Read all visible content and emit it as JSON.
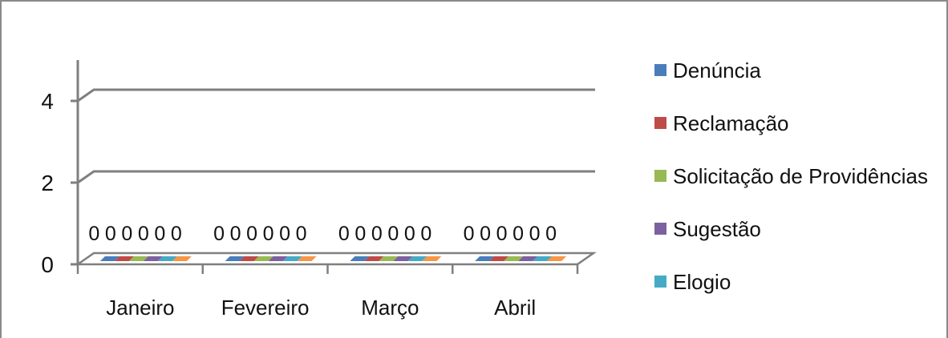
{
  "chart_data": {
    "type": "bar",
    "title": "",
    "xlabel": "",
    "ylabel": "",
    "ylim": [
      0,
      4
    ],
    "yticks": [
      "0",
      "2",
      "4"
    ],
    "grid": true,
    "legend_position": "right",
    "categories": [
      "Janeiro",
      "Fevereiro",
      "Março",
      "Abril"
    ],
    "series": [
      {
        "name": "Denúncia",
        "color": "#4a7ebb",
        "values": [
          0,
          0,
          0,
          0
        ]
      },
      {
        "name": "Reclamação",
        "color": "#be4b48",
        "values": [
          0,
          0,
          0,
          0
        ]
      },
      {
        "name": "Solicitação de Providências",
        "color": "#98b954",
        "values": [
          0,
          0,
          0,
          0
        ]
      },
      {
        "name": "Sugestão",
        "color": "#7d60a0",
        "values": [
          0,
          0,
          0,
          0
        ]
      },
      {
        "name": "Elogio",
        "color": "#46aac5",
        "values": [
          0,
          0,
          0,
          0
        ]
      },
      {
        "name": "",
        "color": "#f79646",
        "values": [
          0,
          0,
          0,
          0
        ]
      }
    ],
    "data_labels": [
      [
        "0",
        "0",
        "0",
        "0",
        "0",
        "0"
      ],
      [
        "0",
        "0",
        "0",
        "0",
        "0",
        "0"
      ],
      [
        "0",
        "0",
        "0",
        "0",
        "0",
        "0"
      ],
      [
        "0",
        "0",
        "0",
        "0",
        "0",
        "0"
      ]
    ]
  }
}
